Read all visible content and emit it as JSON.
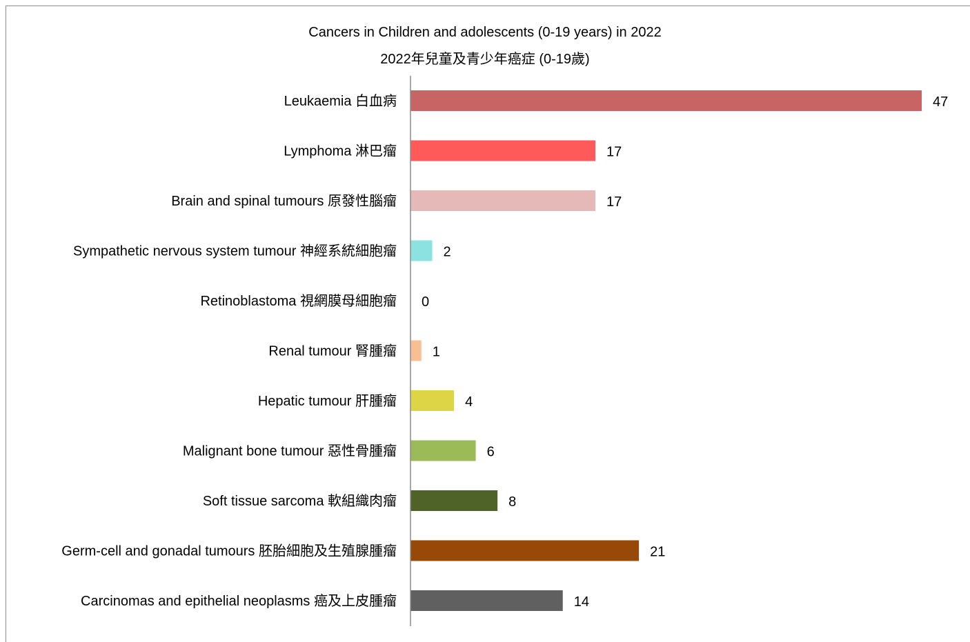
{
  "chart_data": {
    "type": "bar",
    "orientation": "horizontal",
    "title": "Cancers in Children and adolescents (0-19 years) in 2022",
    "subtitle": "2022年兒童及青少年癌症 (0-19歲)",
    "categories": [
      "Leukaemia 白血病",
      "Lymphoma 淋巴瘤",
      "Brain and spinal tumours 原發性腦瘤",
      "Sympathetic nervous system tumour 神經系統細胞瘤",
      "Retinoblastoma 視網膜母細胞瘤",
      "Renal tumour 腎腫瘤",
      "Hepatic tumour 肝腫瘤",
      "Malignant bone tumour 惡性骨腫瘤",
      "Soft tissue sarcoma 軟組織肉瘤",
      "Germ-cell and gonadal tumours 胚胎細胞及生殖腺腫瘤",
      "Carcinomas and epithelial neoplasms 癌及上皮腫瘤"
    ],
    "values": [
      47,
      17,
      17,
      2,
      0,
      1,
      4,
      6,
      8,
      21,
      14
    ],
    "colors": [
      "#c86464",
      "#ff5a5a",
      "#e6b9b9",
      "#8ce1e1",
      "#d2d2d2",
      "#f7bf92",
      "#ddd446",
      "#9bbb59",
      "#4f6228",
      "#984807",
      "#606060"
    ],
    "xlim": [
      0,
      47
    ],
    "grid": false,
    "legend": "none",
    "data_labels": true
  }
}
